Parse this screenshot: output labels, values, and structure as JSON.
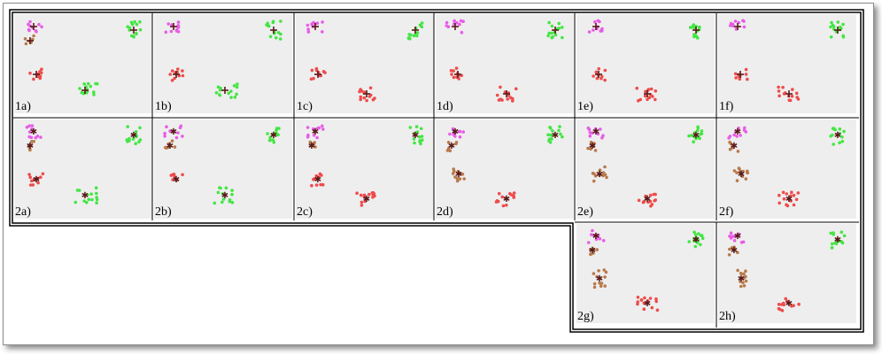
{
  "colors": {
    "background": "#ffffff",
    "panel": "#eeeeee",
    "border": "#000000",
    "cluster_magenta": "#e85ce8",
    "cluster_brown": "#b87a4b",
    "cluster_red": "#ef4b4b",
    "cluster_green": "#43e643",
    "center_marker_dark": "#5a1a1a"
  },
  "panels": [
    {
      "label": "1a)",
      "row": "top",
      "col": 0,
      "clusters": [
        "magenta",
        "brown",
        "red",
        "green",
        "green2"
      ],
      "markers": "cross"
    },
    {
      "label": "1b)",
      "row": "top",
      "col": 1,
      "clusters": [
        "magenta",
        "red",
        "green",
        "green2"
      ],
      "markers": "cross"
    },
    {
      "label": "1c)",
      "row": "top",
      "col": 2,
      "clusters": [
        "magenta",
        "red",
        "red2",
        "green"
      ],
      "markers": "cross"
    },
    {
      "label": "1d)",
      "row": "top",
      "col": 3,
      "clusters": [
        "magenta",
        "red",
        "red2",
        "green"
      ],
      "markers": "cross"
    },
    {
      "label": "1e)",
      "row": "top",
      "col": 4,
      "clusters": [
        "magenta",
        "red",
        "red2",
        "green"
      ],
      "markers": "cross"
    },
    {
      "label": "1f)",
      "row": "top",
      "col": 5,
      "clusters": [
        "magenta",
        "red",
        "red2",
        "green"
      ],
      "markers": "cross"
    },
    {
      "label": "2a)",
      "row": "mid",
      "col": 0,
      "clusters": [
        "magenta",
        "brown",
        "red",
        "green",
        "green2"
      ],
      "markers": "star"
    },
    {
      "label": "2b)",
      "row": "mid",
      "col": 1,
      "clusters": [
        "magenta",
        "brown",
        "red",
        "green",
        "green2"
      ],
      "markers": "star"
    },
    {
      "label": "2c)",
      "row": "mid",
      "col": 2,
      "clusters": [
        "magenta",
        "brown",
        "red",
        "red2",
        "green"
      ],
      "markers": "star"
    },
    {
      "label": "2d)",
      "row": "mid",
      "col": 3,
      "clusters": [
        "magenta",
        "brown",
        "brown2",
        "red2",
        "green"
      ],
      "markers": "star"
    },
    {
      "label": "2e)",
      "row": "mid",
      "col": 4,
      "clusters": [
        "magenta",
        "brown",
        "brown2",
        "red2",
        "green"
      ],
      "markers": "star"
    },
    {
      "label": "2f)",
      "row": "mid",
      "col": 5,
      "clusters": [
        "magenta",
        "brown",
        "brown2",
        "red2",
        "green"
      ],
      "markers": "star"
    },
    {
      "label": "2g)",
      "row": "bottom",
      "col": 4,
      "clusters": [
        "magenta",
        "brown",
        "brown2",
        "red2",
        "green"
      ],
      "markers": "star"
    },
    {
      "label": "2h)",
      "row": "bottom",
      "col": 5,
      "clusters": [
        "magenta",
        "brown",
        "brown2",
        "red2",
        "green"
      ],
      "markers": "star"
    }
  ]
}
